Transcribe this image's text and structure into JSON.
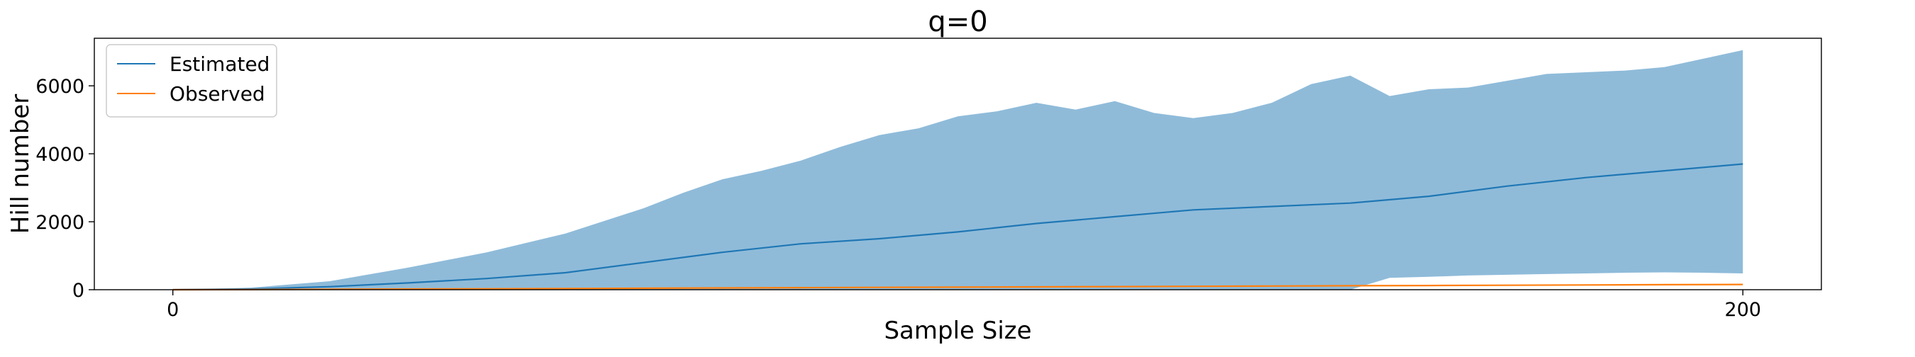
{
  "chart_data": {
    "type": "line",
    "title": "q=0",
    "xlabel": "Sample Size",
    "ylabel": "Hill number",
    "xlim": [
      -10,
      210
    ],
    "ylim": [
      0,
      7400
    ],
    "xticks": [
      0,
      200
    ],
    "yticks": [
      0,
      2000,
      4000,
      6000
    ],
    "grid": false,
    "legend": {
      "position": "top-left",
      "entries": [
        "Estimated",
        "Observed"
      ]
    },
    "colors": {
      "estimated": "#1f77b4",
      "observed": "#ff7f0e",
      "band": "#1f77b4",
      "axis": "#000000",
      "background": "#ffffff"
    },
    "series": [
      {
        "name": "Estimated",
        "x": [
          0,
          10,
          20,
          30,
          40,
          50,
          60,
          70,
          80,
          90,
          100,
          110,
          120,
          130,
          140,
          150,
          160,
          170,
          180,
          190,
          200
        ],
        "values": [
          0,
          20,
          90,
          200,
          330,
          500,
          800,
          1100,
          1350,
          1500,
          1700,
          1950,
          2150,
          2350,
          2450,
          2550,
          2750,
          3050,
          3300,
          3500,
          3700
        ]
      },
      {
        "name": "Observed",
        "x": [
          0,
          10,
          20,
          30,
          40,
          50,
          60,
          70,
          80,
          90,
          100,
          110,
          120,
          130,
          140,
          150,
          160,
          170,
          180,
          190,
          200
        ],
        "values": [
          0,
          5,
          12,
          20,
          28,
          36,
          44,
          52,
          60,
          68,
          76,
          84,
          92,
          100,
          108,
          116,
          124,
          132,
          140,
          148,
          155
        ]
      }
    ],
    "confidence_band": {
      "series": "Estimated",
      "x": [
        0,
        10,
        20,
        30,
        40,
        50,
        60,
        65,
        70,
        75,
        80,
        85,
        90,
        95,
        100,
        105,
        110,
        115,
        120,
        125,
        130,
        135,
        140,
        145,
        150,
        155,
        160,
        165,
        170,
        175,
        180,
        185,
        190,
        195,
        200
      ],
      "upper": [
        0,
        60,
        250,
        650,
        1100,
        1650,
        2400,
        2850,
        3250,
        3500,
        3800,
        4200,
        4550,
        4750,
        5100,
        5250,
        5500,
        5300,
        5550,
        5200,
        5050,
        5200,
        5500,
        6050,
        6300,
        5700,
        5900,
        5950,
        6150,
        6350,
        6400,
        6450,
        6550,
        6800,
        7050
      ],
      "lower": [
        0,
        0,
        0,
        0,
        0,
        0,
        0,
        0,
        0,
        0,
        0,
        0,
        0,
        0,
        0,
        0,
        0,
        0,
        0,
        0,
        0,
        0,
        0,
        0,
        0,
        350,
        380,
        420,
        440,
        460,
        480,
        500,
        510,
        500,
        480
      ]
    }
  }
}
